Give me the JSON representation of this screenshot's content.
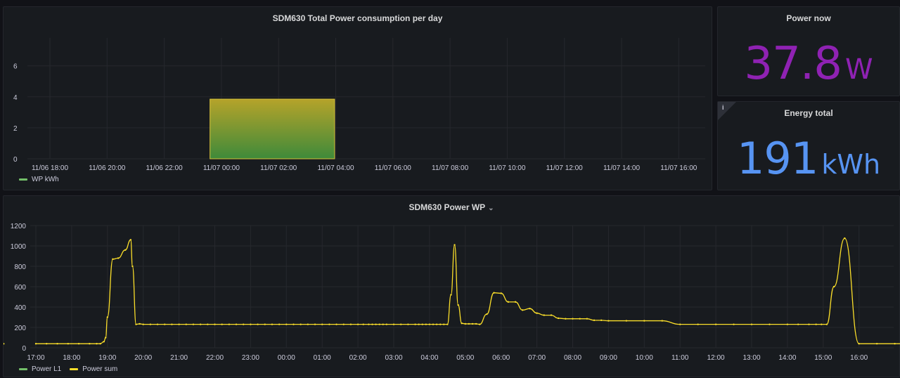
{
  "panels": {
    "daily": {
      "title": "SDM630 Total Power consumption per day",
      "legend": [
        {
          "label": "WP kWh",
          "color": "#73bf69"
        }
      ]
    },
    "power_now": {
      "title": "Power now",
      "value": "37.8",
      "unit": "W",
      "color": "#8f22b3"
    },
    "energy_total": {
      "title": "Energy total",
      "value": "191",
      "unit": "kWh",
      "color": "#5794f2",
      "info_icon": "i"
    },
    "power_wp": {
      "title": "SDM630 Power WP",
      "title_menu_icon": "chevron-down-icon",
      "legend": [
        {
          "label": "Power L1",
          "color": "#73bf69"
        },
        {
          "label": "Power sum",
          "color": "#fade2a"
        }
      ]
    }
  },
  "chart_data": [
    {
      "type": "bar",
      "yticks": [
        0,
        2,
        4,
        6
      ],
      "ylim": [
        0,
        7.8
      ],
      "xticks": [
        "11/06 18:00",
        "11/06 20:00",
        "11/06 22:00",
        "11/07 00:00",
        "11/07 02:00",
        "11/07 04:00",
        "11/07 06:00",
        "11/07 08:00",
        "11/07 10:00",
        "11/07 12:00",
        "11/07 14:00",
        "11/07 16:00"
      ],
      "series": [
        {
          "name": "WP kWh",
          "bars": [
            {
              "start": "11/06 22:00",
              "end": "11/07 02:20",
              "value": 3.85
            }
          ]
        }
      ]
    },
    {
      "type": "line",
      "yticks": [
        0,
        200,
        400,
        600,
        800,
        1000,
        1200
      ],
      "ylim": [
        0,
        1200
      ],
      "xticks": [
        "17:00",
        "18:00",
        "19:00",
        "20:00",
        "21:00",
        "22:00",
        "23:00",
        "00:00",
        "01:00",
        "02:00",
        "03:00",
        "04:00",
        "05:00",
        "06:00",
        "07:00",
        "08:00",
        "09:00",
        "10:00",
        "11:00",
        "12:00",
        "13:00",
        "14:00",
        "15:00",
        "16:00"
      ],
      "x_hours_from_first_tick": [
        0,
        0.3,
        0.6,
        0.9,
        1.2,
        1.5,
        1.7,
        1.8,
        1.9,
        1.95,
        2.0,
        2.15,
        2.3,
        2.5,
        2.65,
        2.7,
        2.8,
        2.9,
        3.0,
        3.2,
        3.4,
        3.6,
        3.8,
        4.0,
        4.2,
        4.4,
        4.6,
        4.8,
        5.0,
        5.2,
        5.4,
        5.6,
        5.8,
        6.0,
        6.2,
        6.4,
        6.6,
        6.8,
        7.0,
        7.2,
        7.4,
        7.6,
        7.8,
        8.0,
        8.2,
        8.4,
        8.6,
        8.8,
        9.0,
        9.15,
        9.3,
        9.4,
        9.5,
        9.6,
        9.7,
        9.8,
        10.0,
        10.2,
        10.4,
        10.6,
        10.7,
        10.8,
        10.9,
        11.0,
        11.1,
        11.2,
        11.3,
        11.4,
        11.5,
        11.6,
        11.7,
        11.8,
        11.9,
        12.0,
        12.1,
        12.2,
        12.3,
        12.4,
        12.6,
        12.8,
        13.0,
        13.2,
        13.4,
        13.6,
        13.8,
        14.0,
        14.2,
        14.4,
        14.6,
        14.8,
        15.0,
        15.2,
        15.4,
        15.6,
        15.8,
        16.0,
        16.5,
        17.0,
        17.5,
        18.0,
        18.5,
        19.0,
        19.5,
        20.0,
        20.5,
        21.0,
        21.3,
        21.6,
        21.8,
        21.95,
        22.1,
        22.3,
        22.6,
        23.0,
        23.5,
        24.0,
        24.5,
        25.0,
        25.5,
        25.9
      ],
      "series": [
        {
          "name": "Power sum",
          "values": [
            40,
            40,
            40,
            40,
            40,
            40,
            40,
            40,
            60,
            100,
            300,
            870,
            880,
            960,
            1060,
            800,
            230,
            235,
            230,
            230,
            230,
            230,
            230,
            230,
            230,
            230,
            230,
            230,
            230,
            230,
            230,
            230,
            230,
            230,
            230,
            230,
            230,
            230,
            230,
            230,
            230,
            230,
            230,
            230,
            230,
            230,
            230,
            230,
            230,
            230,
            230,
            230,
            230,
            230,
            230,
            230,
            230,
            230,
            230,
            230,
            230,
            230,
            230,
            230,
            230,
            230,
            230,
            230,
            230,
            520,
            1010,
            420,
            240,
            235,
            235,
            235,
            235,
            230,
            330,
            540,
            535,
            450,
            450,
            370,
            385,
            340,
            320,
            320,
            290,
            285,
            285,
            285,
            285,
            270,
            270,
            265,
            265,
            265,
            265,
            230,
            230,
            230,
            230,
            230,
            230,
            230,
            230,
            230,
            230,
            230,
            230,
            600,
            1075,
            40,
            40,
            40,
            40,
            40,
            40,
            40,
            40,
            40,
            40,
            40
          ]
        }
      ]
    }
  ]
}
